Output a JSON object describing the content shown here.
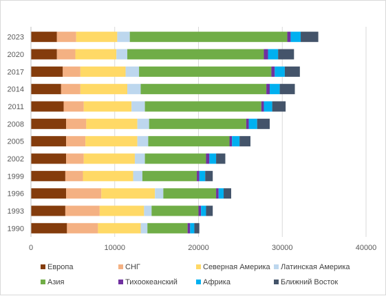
{
  "chart_data": {
    "type": "bar",
    "orientation": "horizontal",
    "stacked": true,
    "title": "",
    "xlabel": "",
    "ylabel": "",
    "categories": [
      "1990",
      "1993",
      "1996",
      "1999",
      "2002",
      "2005",
      "2008",
      "2011",
      "2014",
      "2017",
      "2020",
      "2023"
    ],
    "xlim": [
      0,
      40000
    ],
    "x_ticks": [
      0,
      10000,
      20000,
      30000,
      40000
    ],
    "x_tick_labels": [
      "0",
      "10000",
      "20000",
      "30000",
      "40000"
    ],
    "grid": "vertical",
    "legend_position": "bottom",
    "series": [
      {
        "name": "Европа",
        "color": "#843C0C",
        "values": [
          4300,
          4100,
          4200,
          4100,
          4200,
          4200,
          4200,
          3900,
          3600,
          3800,
          3100,
          3100
        ]
      },
      {
        "name": "СНГ",
        "color": "#F4B183",
        "values": [
          3700,
          4100,
          4200,
          2100,
          2100,
          2300,
          2400,
          2400,
          2300,
          2100,
          2200,
          2300
        ]
      },
      {
        "name": "Северная Америка",
        "color": "#FFD966",
        "values": [
          5100,
          5300,
          6400,
          6000,
          6100,
          6200,
          6100,
          5700,
          5600,
          5400,
          4900,
          4900
        ]
      },
      {
        "name": "Латинская Америка",
        "color": "#BDD7EE",
        "values": [
          800,
          900,
          1000,
          1100,
          1200,
          1300,
          1400,
          1600,
          1600,
          1600,
          1300,
          1500
        ]
      },
      {
        "name": "Азия",
        "color": "#70AD47",
        "values": [
          4800,
          5600,
          6300,
          6500,
          7300,
          9700,
          11600,
          13900,
          15000,
          15800,
          16300,
          18800
        ]
      },
      {
        "name": "Тихоокеанский",
        "color": "#7030A0",
        "values": [
          300,
          300,
          300,
          300,
          400,
          300,
          300,
          300,
          400,
          400,
          500,
          400
        ]
      },
      {
        "name": "Африка",
        "color": "#00B0F0",
        "values": [
          500,
          600,
          600,
          700,
          800,
          900,
          1000,
          1000,
          1200,
          1200,
          1200,
          1200
        ]
      },
      {
        "name": "Ближний Восток",
        "color": "#44546A",
        "values": [
          600,
          800,
          900,
          900,
          1100,
          1300,
          1500,
          1600,
          1800,
          1800,
          1900,
          2100
        ]
      }
    ]
  }
}
